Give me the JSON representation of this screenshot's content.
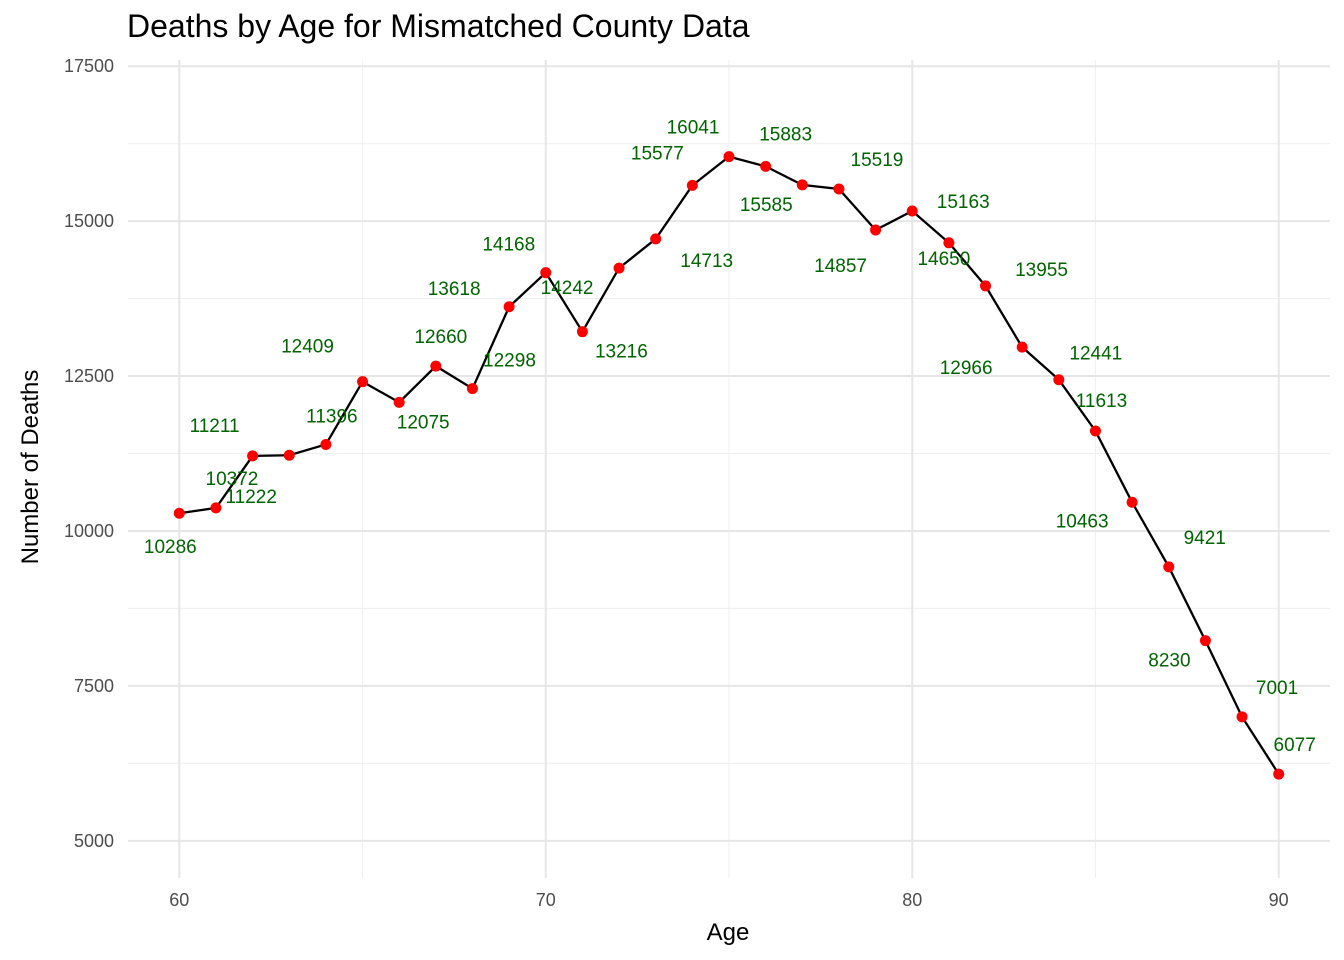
{
  "chart_data": {
    "type": "line",
    "title": "Deaths by Age for Mismatched County Data",
    "xlabel": "Age",
    "ylabel": "Number of Deaths",
    "xlim": [
      58.6,
      91.4
    ],
    "ylim": [
      4400,
      17600
    ],
    "x_ticks": [
      60,
      70,
      80,
      90
    ],
    "y_ticks": [
      5000,
      7500,
      10000,
      12500,
      15000,
      17500
    ],
    "x_tick_labels": [
      "60",
      "70",
      "80",
      "90"
    ],
    "y_tick_labels": [
      "5000",
      "7500",
      "10000",
      "12500",
      "15000",
      "17500"
    ],
    "grid": true,
    "legend": "none",
    "line_color": "#000000",
    "point_color": "#ff0000",
    "label_color": "#006400",
    "x": [
      60,
      61,
      62,
      63,
      64,
      65,
      66,
      67,
      68,
      69,
      70,
      71,
      72,
      73,
      74,
      75,
      76,
      77,
      78,
      79,
      80,
      81,
      82,
      83,
      84,
      85,
      86,
      87,
      88,
      89,
      90
    ],
    "values": [
      10286,
      10372,
      11211,
      11222,
      11396,
      12409,
      12075,
      12660,
      12298,
      13618,
      14168,
      13216,
      14242,
      14713,
      15577,
      16041,
      15883,
      15585,
      15519,
      14857,
      15163,
      14650,
      13955,
      12966,
      12441,
      11613,
      10463,
      9421,
      8230,
      7001,
      6077
    ],
    "data_labels": [
      "10286",
      "10372",
      "11211",
      "11222",
      "11396",
      "12409",
      "12075",
      "12660",
      "12298",
      "13618",
      "14168",
      "13216",
      "14242",
      "14713",
      "15577",
      "16041",
      "15883",
      "15585",
      "15519",
      "14857",
      "15163",
      "14650",
      "13955",
      "12966",
      "12441",
      "11613",
      "10463",
      "9421",
      "8230",
      "7001",
      "6077"
    ]
  }
}
